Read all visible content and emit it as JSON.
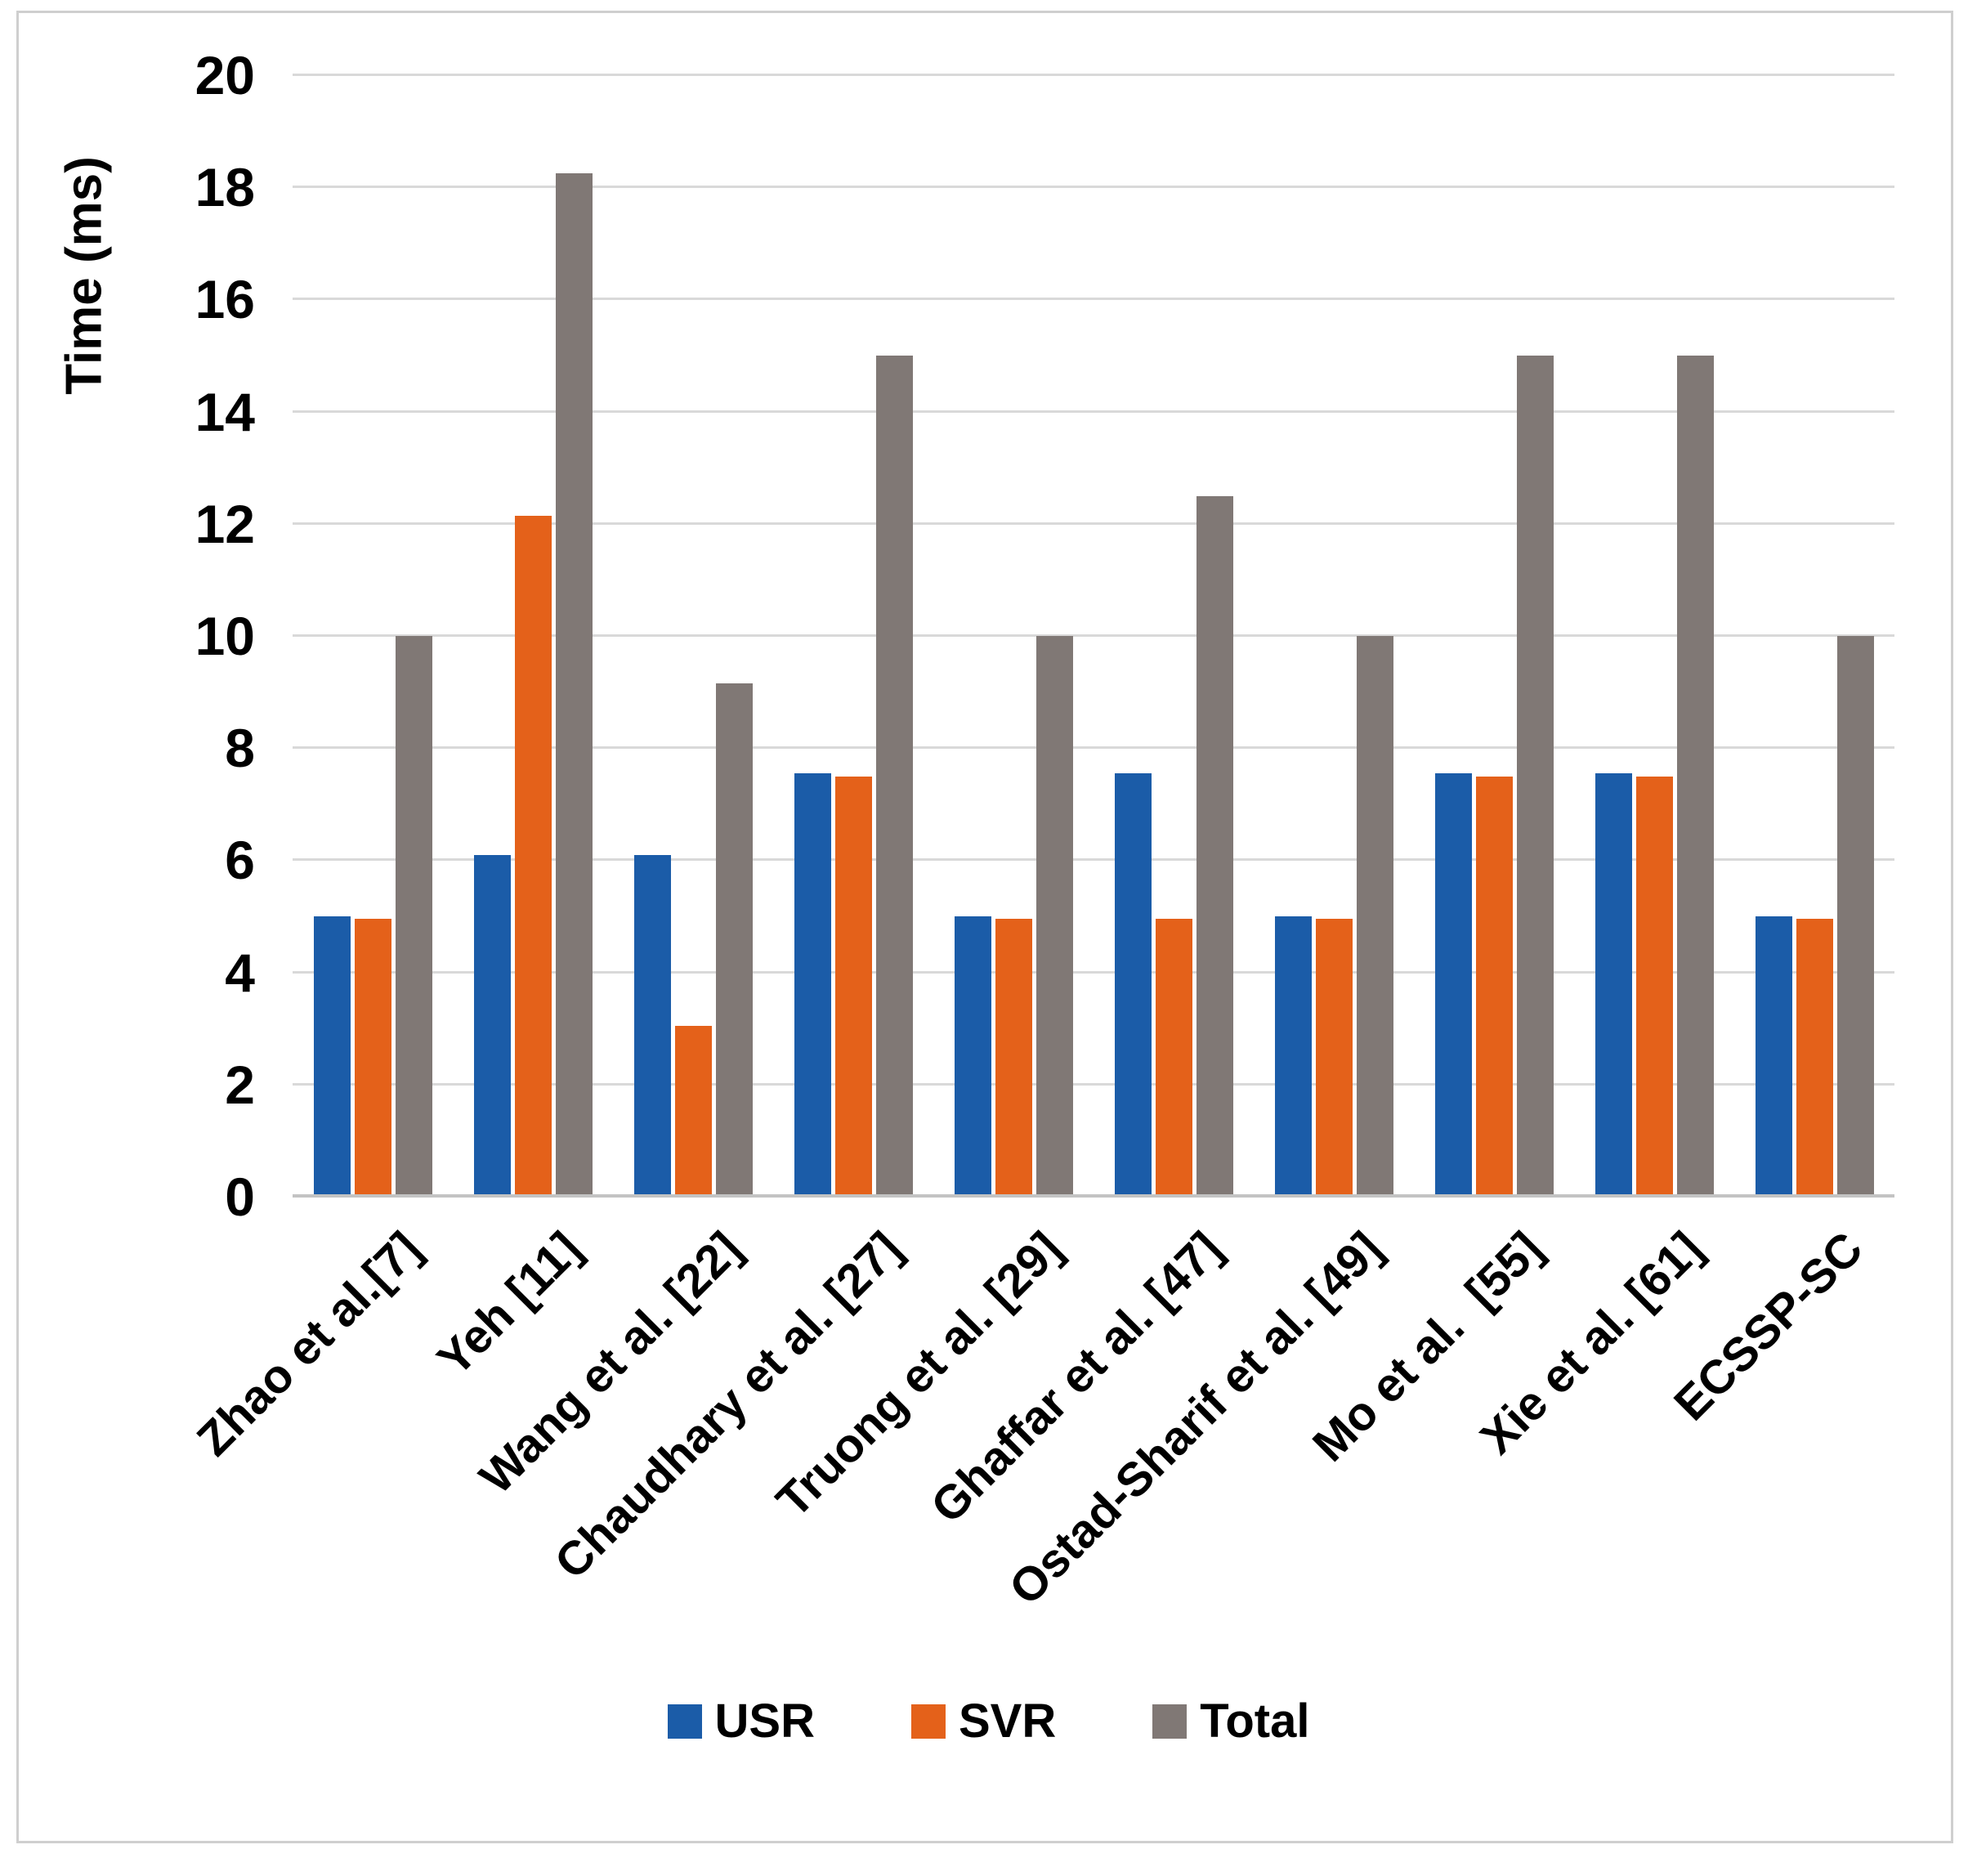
{
  "figure": {
    "background": "#ffffff",
    "border_color": "#cfcfcf"
  },
  "colors": {
    "gridline": "#d9d9d9",
    "axis_line": "#c3c3c3",
    "text": "#000000"
  },
  "chart_data": {
    "type": "bar",
    "title": "",
    "xlabel": "",
    "ylabel": "Time (ms)",
    "ylim": [
      0,
      20
    ],
    "ytick_step": 2,
    "ytick_labels": [
      "0",
      "2",
      "4",
      "6",
      "8",
      "10",
      "12",
      "14",
      "16",
      "18",
      "20"
    ],
    "grid": "horizontal",
    "legend_position": "bottom-center",
    "categories": [
      "Zhao et al.[7]",
      "Yeh [11]",
      "Wang et al. [22]",
      "Chaudhary et al. [27]",
      "Truong et al. [29]",
      "Ghaffar et al. [47]",
      "Ostad-Sharif et al. [49]",
      "Mo et al.  [55]",
      "Xie et al. [61]",
      "ECSSP-SC"
    ],
    "series": [
      {
        "name": "USR",
        "color": "#1b5ca8",
        "values": [
          5.0,
          6.1,
          6.1,
          7.55,
          5.0,
          7.55,
          5.0,
          7.55,
          7.55,
          5.0
        ]
      },
      {
        "name": "SVR",
        "color": "#e4611a",
        "values": [
          4.95,
          12.15,
          3.05,
          7.5,
          4.95,
          4.95,
          4.95,
          7.5,
          7.5,
          4.95
        ]
      },
      {
        "name": "Total",
        "color": "#807875",
        "values": [
          10.0,
          18.25,
          9.15,
          15.0,
          10.0,
          12.5,
          10.0,
          15.0,
          15.0,
          10.0
        ]
      }
    ]
  }
}
